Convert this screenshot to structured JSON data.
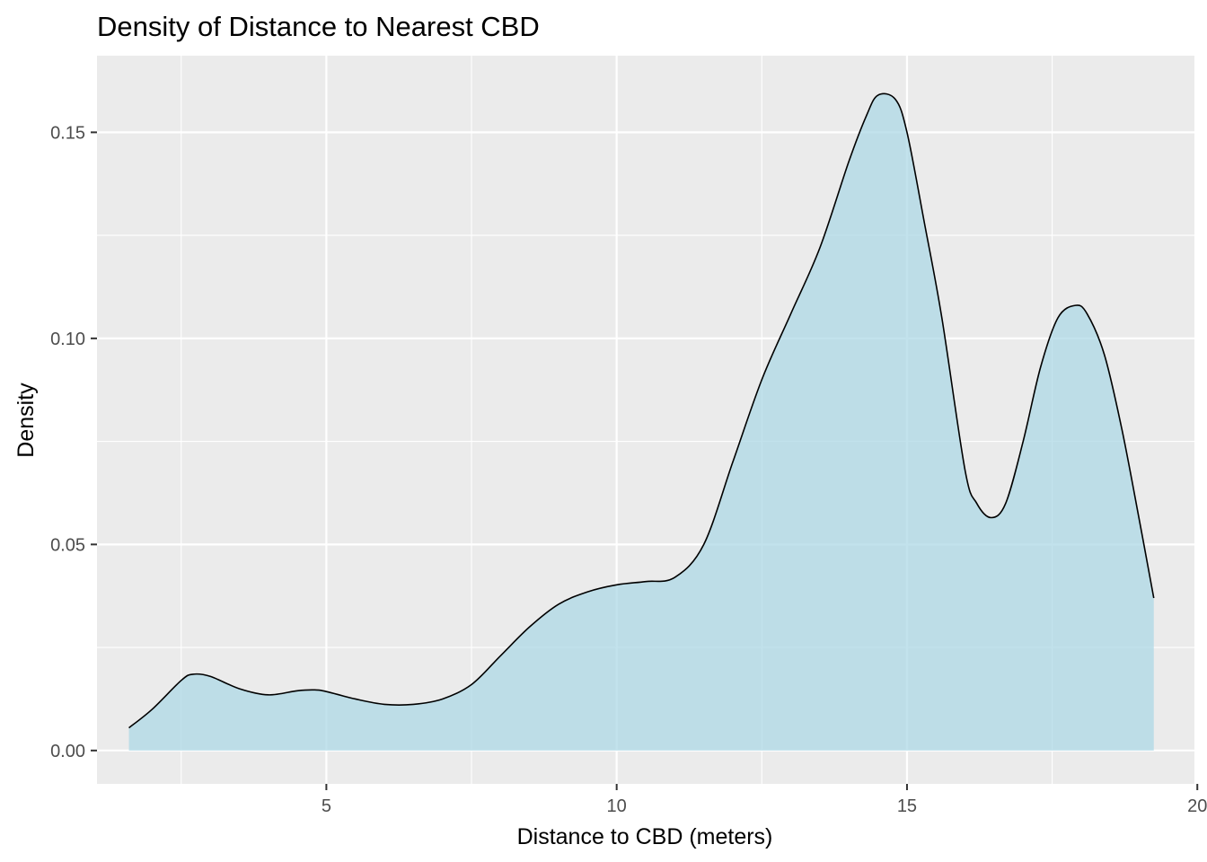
{
  "chart_data": {
    "type": "area",
    "title": "Density of Distance to Nearest CBD",
    "xlabel": "Distance to CBD (meters)",
    "ylabel": "Density",
    "xlim": [
      1.05,
      19.95
    ],
    "ylim": [
      -0.0081,
      0.1686
    ],
    "x_ticks": [
      5,
      10,
      15,
      20
    ],
    "x_tick_labels": [
      "5",
      "10",
      "15",
      "20"
    ],
    "x_minor_ticks": [
      2.5,
      7.5,
      12.5,
      17.5
    ],
    "y_ticks": [
      0.0,
      0.05,
      0.1,
      0.15
    ],
    "y_tick_labels": [
      "0.00",
      "0.05",
      "0.10",
      "0.15"
    ],
    "y_minor_ticks": [
      0.025,
      0.075,
      0.125
    ],
    "grid": true,
    "colors": {
      "panel_background": "#ebebeb",
      "grid": "#ffffff",
      "fill": "#add8e6",
      "line": "#000000"
    },
    "series": [
      {
        "x": [
          1.6,
          2.0,
          2.5,
          2.7,
          3.0,
          3.5,
          4.0,
          4.5,
          4.8,
          5.0,
          5.5,
          6.0,
          6.5,
          7.0,
          7.5,
          8.0,
          8.5,
          9.0,
          9.5,
          10.0,
          10.5,
          11.0,
          11.5,
          12.0,
          12.5,
          13.0,
          13.5,
          14.0,
          14.3,
          14.5,
          14.8,
          15.0,
          15.3,
          15.6,
          16.0,
          16.2,
          16.45,
          16.7,
          17.0,
          17.3,
          17.6,
          17.9,
          18.1,
          18.4,
          18.7,
          19.0,
          19.25
        ],
        "y": [
          0.0055,
          0.01,
          0.017,
          0.0185,
          0.018,
          0.015,
          0.0135,
          0.0145,
          0.0147,
          0.0143,
          0.0125,
          0.0112,
          0.0112,
          0.0125,
          0.016,
          0.023,
          0.03,
          0.0355,
          0.0385,
          0.0402,
          0.041,
          0.042,
          0.05,
          0.07,
          0.09,
          0.106,
          0.122,
          0.143,
          0.154,
          0.159,
          0.158,
          0.15,
          0.128,
          0.105,
          0.068,
          0.06,
          0.0565,
          0.06,
          0.075,
          0.093,
          0.105,
          0.108,
          0.106,
          0.096,
          0.078,
          0.056,
          0.037
        ]
      }
    ]
  }
}
